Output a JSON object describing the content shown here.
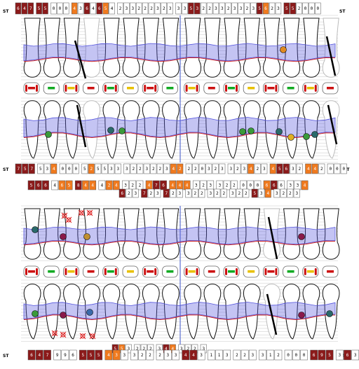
{
  "labels": {
    "st": "ST"
  },
  "colors": {
    "dark": "#8b1a1a",
    "orange": "#f07a1e",
    "white": "#ffffff",
    "border": "#555555",
    "band": "#5555dd",
    "gum": "#cc2222",
    "midline": "#5a6fd0"
  },
  "rows": [
    {
      "id": "upper-buccal-top",
      "cells": [
        [
          "6",
          "dark"
        ],
        [
          "4",
          "dark"
        ],
        [
          "7",
          "dark"
        ],
        [
          "5",
          "dark"
        ],
        [
          "5",
          "dark"
        ],
        [
          "0",
          "white"
        ],
        [
          "0",
          "white"
        ],
        [
          "0",
          "white"
        ],
        [
          "4",
          "orange"
        ],
        [
          "3",
          "white"
        ],
        [
          "6",
          "dark"
        ],
        [
          "4",
          "white"
        ],
        [
          "6",
          "dark"
        ],
        [
          "5",
          "orange"
        ],
        [
          "4",
          "white"
        ],
        [
          "2",
          "white"
        ],
        [
          "3",
          "white"
        ],
        [
          "3",
          "white"
        ],
        [
          "2",
          "white"
        ],
        [
          "2",
          "white"
        ],
        [
          "2",
          "white"
        ],
        [
          "3",
          "white"
        ],
        [
          "2",
          "white"
        ],
        [
          "3",
          "white"
        ],
        [
          "3",
          "white"
        ],
        [
          "3",
          "white"
        ],
        [
          "5",
          "dark"
        ],
        [
          "3",
          "dark"
        ],
        [
          "2",
          "white"
        ],
        [
          "2",
          "white"
        ],
        [
          "3",
          "white"
        ],
        [
          "3",
          "white"
        ],
        [
          "2",
          "white"
        ],
        [
          "3",
          "white"
        ],
        [
          "3",
          "white"
        ],
        [
          "2",
          "white"
        ],
        [
          "3",
          "white"
        ],
        [
          "5",
          "dark"
        ],
        [
          "6",
          "orange"
        ],
        [
          "2",
          "white"
        ],
        [
          "3",
          "white"
        ],
        [
          "5",
          "dark"
        ],
        [
          "5",
          "dark"
        ],
        [
          "2",
          "white"
        ],
        [
          "0",
          "white"
        ],
        [
          "0",
          "white"
        ],
        [
          "0",
          "white"
        ]
      ]
    },
    {
      "id": "upper-palatal-a",
      "cells": [
        [
          "7",
          "dark"
        ],
        [
          "5",
          "dark"
        ],
        [
          "7",
          "dark"
        ],
        [
          "5",
          "white"
        ],
        [
          "3",
          "white"
        ],
        [
          "4",
          "orange"
        ],
        [
          "0",
          "white"
        ],
        [
          "0",
          "white"
        ],
        [
          "0",
          "white"
        ],
        [
          "5",
          "white"
        ],
        [
          "2",
          "orange"
        ],
        [
          "5",
          "white"
        ],
        [
          "5",
          "white"
        ],
        [
          "3",
          "white"
        ],
        [
          "3",
          "white"
        ],
        [
          "3",
          "white"
        ],
        [
          "2",
          "white"
        ],
        [
          "2",
          "white"
        ],
        [
          "3",
          "white"
        ],
        [
          "2",
          "white"
        ],
        [
          "2",
          "white"
        ],
        [
          "3",
          "white"
        ],
        [
          "4",
          "orange"
        ],
        [
          "2",
          "orange"
        ],
        [
          "2",
          "white"
        ],
        [
          "2",
          "white"
        ],
        [
          "0",
          "white"
        ],
        [
          "3",
          "white"
        ],
        [
          "2",
          "white"
        ],
        [
          "3",
          "white"
        ],
        [
          "3",
          "white"
        ],
        [
          "2",
          "white"
        ],
        [
          "3",
          "white"
        ],
        [
          "4",
          "orange"
        ],
        [
          "2",
          "white"
        ],
        [
          "3",
          "white"
        ],
        [
          "4",
          "orange"
        ],
        [
          "5",
          "dark"
        ],
        [
          "6",
          "dark"
        ],
        [
          "3",
          "white"
        ],
        [
          "2",
          "white"
        ],
        [
          "4",
          "orange"
        ],
        [
          "4",
          "orange"
        ],
        [
          "2",
          "white"
        ],
        [
          "0",
          "white"
        ],
        [
          "0",
          "white"
        ],
        [
          "0",
          "white"
        ]
      ]
    },
    {
      "id": "upper-palatal-b",
      "cells": [
        [
          "5",
          "dark"
        ],
        [
          "6",
          "dark"
        ],
        [
          "6",
          "dark"
        ],
        [
          "4",
          "white"
        ],
        [
          "6",
          "orange"
        ],
        [
          "5",
          "orange"
        ],
        [
          "8",
          "dark"
        ],
        [
          "4",
          "orange"
        ],
        [
          "4",
          "orange"
        ],
        [
          "4",
          "white"
        ],
        [
          "2",
          "orange"
        ],
        [
          "4",
          "orange"
        ],
        [
          "3",
          "white"
        ],
        [
          "2",
          "white"
        ],
        [
          "2",
          "white"
        ],
        [
          "4",
          "orange"
        ],
        [
          "7",
          "dark"
        ],
        [
          "6",
          "dark"
        ],
        [
          "4",
          "orange"
        ],
        [
          "4",
          "orange"
        ],
        [
          "4",
          "orange"
        ],
        [
          "3",
          "white"
        ],
        [
          "2",
          "white"
        ],
        [
          "3",
          "white"
        ],
        [
          "3",
          "white"
        ],
        [
          "2",
          "white"
        ],
        [
          "2",
          "white"
        ],
        [
          "0",
          "white"
        ],
        [
          "0",
          "white"
        ],
        [
          "0",
          "white"
        ],
        [
          "6",
          "orange"
        ],
        [
          "6",
          "dark"
        ],
        [
          "6",
          "white"
        ],
        [
          "3",
          "white"
        ],
        [
          "3",
          "white"
        ],
        [
          "4",
          "orange"
        ]
      ]
    },
    {
      "id": "lower-lingual-a",
      "cells": [
        [
          "6",
          "dark"
        ],
        [
          "2",
          "white"
        ],
        [
          "3",
          "white"
        ],
        [
          "7",
          "dark"
        ],
        [
          "2",
          "white"
        ],
        [
          "3",
          "white"
        ],
        [
          "7",
          "dark"
        ],
        [
          "2",
          "white"
        ],
        [
          "3",
          "white"
        ],
        [
          "3",
          "white"
        ],
        [
          "2",
          "white"
        ],
        [
          "2",
          "white"
        ],
        [
          "3",
          "white"
        ],
        [
          "2",
          "white"
        ],
        [
          "2",
          "white"
        ],
        [
          "3",
          "white"
        ],
        [
          "2",
          "white"
        ],
        [
          "2",
          "white"
        ],
        [
          "5",
          "dark"
        ],
        [
          "3",
          "white"
        ],
        [
          "4",
          "orange"
        ],
        [
          "3",
          "white"
        ],
        [
          "2",
          "white"
        ],
        [
          "2",
          "white"
        ],
        [
          "3",
          "white"
        ]
      ]
    },
    {
      "id": "lower-buccal-bottom-a",
      "cells": [
        [
          "5",
          "dark"
        ],
        [
          "5",
          "orange"
        ],
        [
          "3",
          "white"
        ],
        [
          "2",
          "white"
        ],
        [
          "2",
          "white"
        ],
        [
          "2",
          "white"
        ],
        [
          "3",
          "white"
        ],
        [
          "4",
          "dark"
        ],
        [
          "4",
          "orange"
        ],
        [
          "3",
          "white"
        ],
        [
          "2",
          "white"
        ],
        [
          "2",
          "white"
        ],
        [
          "3",
          "white"
        ]
      ]
    },
    {
      "id": "lower-buccal-bottom",
      "cells": [
        [
          "6",
          "dark"
        ],
        [
          "4",
          "dark"
        ],
        [
          "7",
          "dark"
        ],
        [
          "9",
          "white"
        ],
        [
          "9",
          "white"
        ],
        [
          "6",
          "white"
        ],
        [
          "5",
          "dark"
        ],
        [
          "5",
          "dark"
        ],
        [
          "5",
          "dark"
        ],
        [
          "4",
          "orange"
        ],
        [
          "3",
          "orange"
        ],
        [
          "3",
          "white"
        ],
        [
          "3",
          "white"
        ],
        [
          "2",
          "white"
        ],
        [
          "2",
          "white"
        ],
        [
          "2",
          "white"
        ],
        [
          "3",
          "white"
        ],
        [
          "3",
          "white"
        ],
        [
          "4",
          "dark"
        ],
        [
          "4",
          "dark"
        ],
        [
          "3",
          "white"
        ],
        [
          "1",
          "white"
        ],
        [
          "1",
          "white"
        ],
        [
          "3",
          "white"
        ],
        [
          "2",
          "white"
        ],
        [
          "2",
          "white"
        ],
        [
          "3",
          "white"
        ],
        [
          "3",
          "white"
        ],
        [
          "1",
          "white"
        ],
        [
          "2",
          "white"
        ],
        [
          "0",
          "white"
        ],
        [
          "0",
          "white"
        ],
        [
          "0",
          "white"
        ],
        [
          "6",
          "dark"
        ],
        [
          "9",
          "dark"
        ],
        [
          "5",
          "dark"
        ],
        [
          "3",
          "white"
        ],
        [
          "6",
          "dark"
        ],
        [
          "3",
          "white"
        ]
      ]
    }
  ]
}
